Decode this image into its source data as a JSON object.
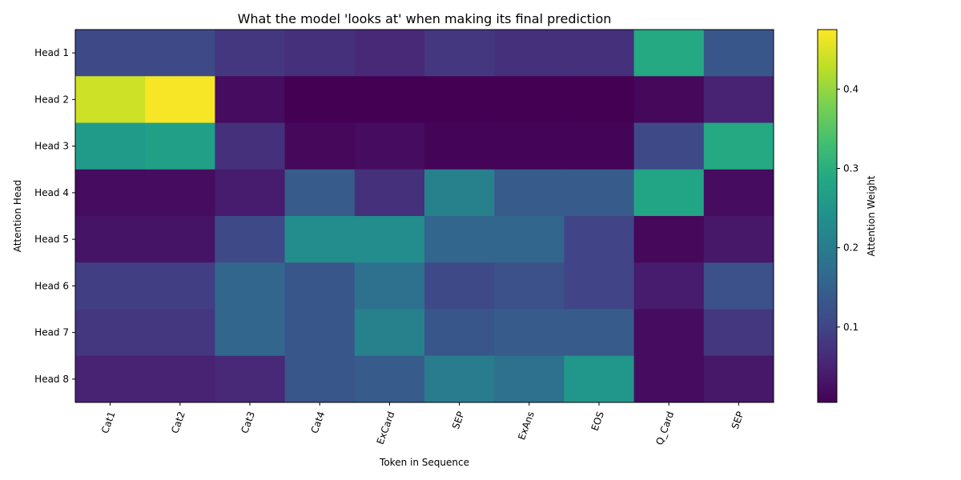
{
  "chart_data": {
    "type": "heatmap",
    "title": "What the model 'looks at' when making its final prediction",
    "xlabel": "Token in Sequence",
    "ylabel": "Attention Head",
    "x_categories": [
      "Cat1",
      "Cat2",
      "Cat3",
      "Cat4",
      "ExCard",
      "SEP",
      "ExAns",
      "EOS",
      "Q_Card",
      "SEP"
    ],
    "y_categories": [
      "Head 1",
      "Head 2",
      "Head 3",
      "Head 4",
      "Head 5",
      "Head 6",
      "Head 7",
      "Head 8"
    ],
    "values": [
      [
        0.11,
        0.11,
        0.08,
        0.07,
        0.06,
        0.08,
        0.07,
        0.07,
        0.29,
        0.13
      ],
      [
        0.44,
        0.47,
        0.02,
        0.005,
        0.005,
        0.005,
        0.005,
        0.005,
        0.015,
        0.05
      ],
      [
        0.26,
        0.27,
        0.07,
        0.015,
        0.02,
        0.01,
        0.01,
        0.01,
        0.11,
        0.29
      ],
      [
        0.02,
        0.02,
        0.04,
        0.14,
        0.07,
        0.21,
        0.14,
        0.14,
        0.28,
        0.02
      ],
      [
        0.03,
        0.03,
        0.11,
        0.23,
        0.23,
        0.16,
        0.16,
        0.1,
        0.015,
        0.035
      ],
      [
        0.09,
        0.09,
        0.16,
        0.13,
        0.18,
        0.11,
        0.12,
        0.1,
        0.04,
        0.12
      ],
      [
        0.08,
        0.08,
        0.16,
        0.13,
        0.21,
        0.13,
        0.14,
        0.14,
        0.02,
        0.08
      ],
      [
        0.05,
        0.05,
        0.06,
        0.13,
        0.14,
        0.2,
        0.18,
        0.25,
        0.02,
        0.035
      ]
    ],
    "colormap": "viridis",
    "colorbar": {
      "label": "Attention Weight",
      "range": [
        0.005,
        0.475
      ],
      "ticks": [
        0.1,
        0.2,
        0.3,
        0.4
      ],
      "tick_labels": [
        "0.1",
        "0.2",
        "0.3",
        "0.4"
      ]
    }
  }
}
